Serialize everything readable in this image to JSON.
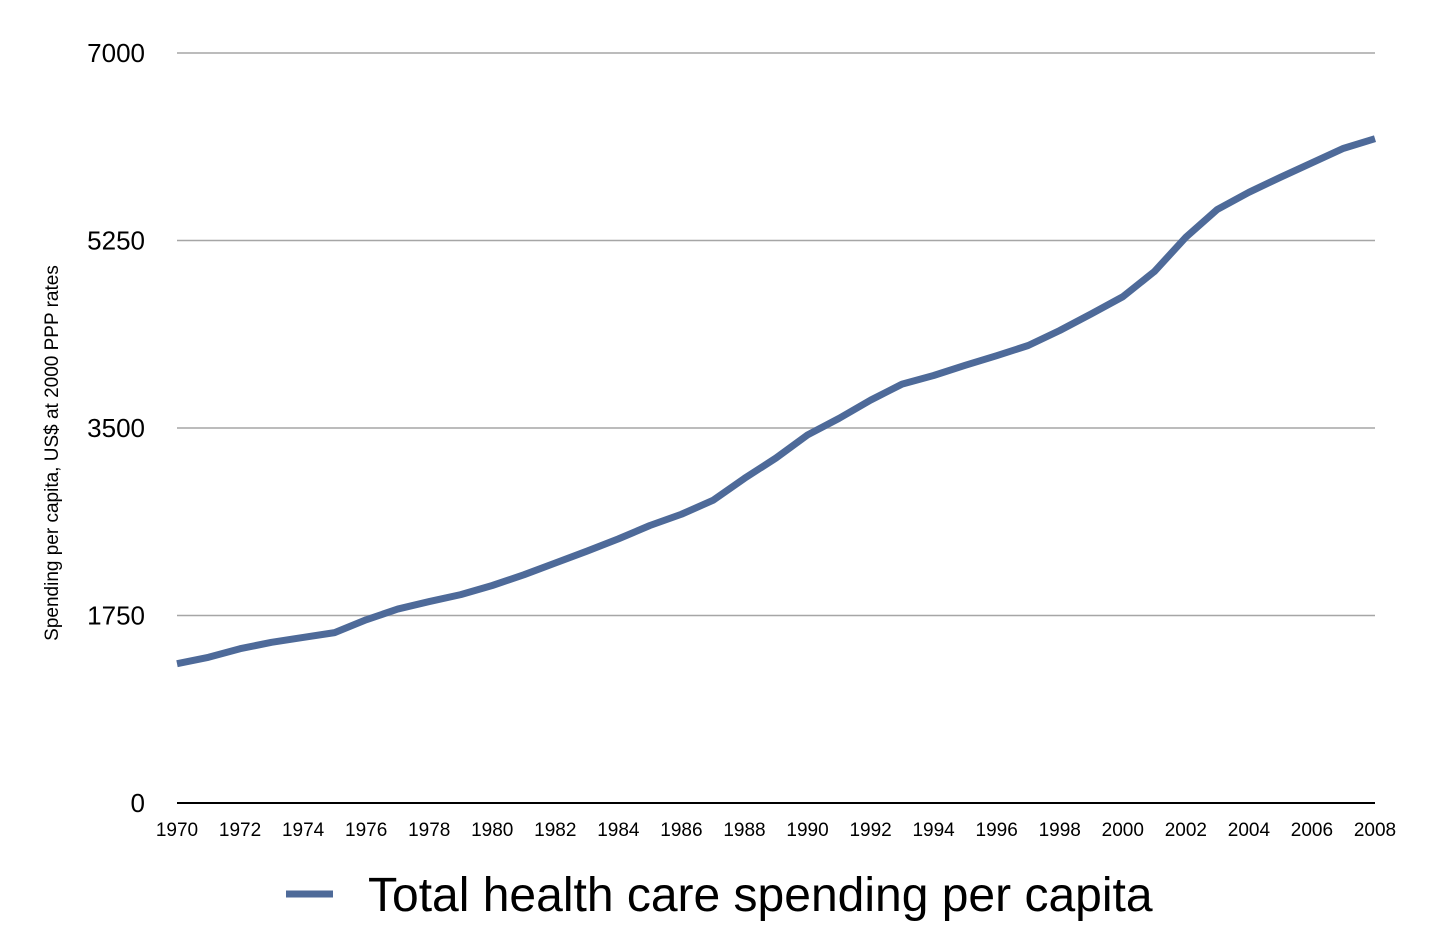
{
  "chart_data": {
    "type": "line",
    "title": "",
    "xlabel": "",
    "ylabel": "Spending per capita, US$ at 2000 PPP rates",
    "ylim": [
      0,
      7000
    ],
    "yticks": [
      "0",
      "1750",
      "3500",
      "5250",
      "7000"
    ],
    "xticks": [
      "1970",
      "1972",
      "1974",
      "1976",
      "1978",
      "1980",
      "1982",
      "1984",
      "1986",
      "1988",
      "1990",
      "1992",
      "1994",
      "1996",
      "1998",
      "2000",
      "2002",
      "2004",
      "2006",
      "2008"
    ],
    "x": [
      1970,
      1971,
      1972,
      1973,
      1974,
      1975,
      1976,
      1977,
      1978,
      1979,
      1980,
      1981,
      1982,
      1983,
      1984,
      1985,
      1986,
      1987,
      1988,
      1989,
      1990,
      1991,
      1992,
      1993,
      1994,
      1995,
      1996,
      1997,
      1998,
      1999,
      2000,
      2001,
      2002,
      2003,
      2004,
      2005,
      2006,
      2007,
      2008
    ],
    "grid": true,
    "legend_position": "bottom",
    "series": [
      {
        "name": "Total health care spending per capita",
        "color": "#4e6a99",
        "values": [
          1300,
          1360,
          1440,
          1500,
          1545,
          1590,
          1710,
          1810,
          1880,
          1945,
          2030,
          2130,
          2240,
          2350,
          2465,
          2590,
          2695,
          2825,
          3030,
          3220,
          3435,
          3590,
          3760,
          3910,
          3990,
          4085,
          4175,
          4270,
          4410,
          4565,
          4725,
          4960,
          5280,
          5540,
          5700,
          5840,
          5975,
          6110,
          6200
        ]
      }
    ]
  }
}
